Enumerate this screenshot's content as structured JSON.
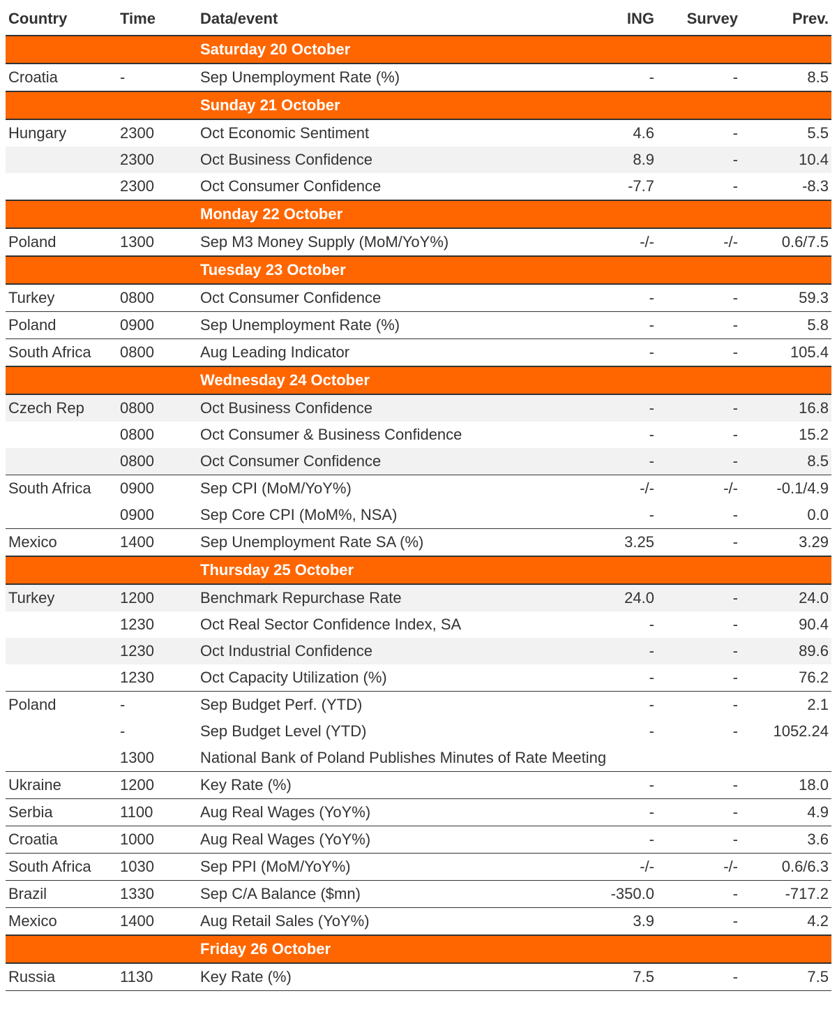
{
  "colors": {
    "accent": "#ff6600",
    "text": "#333333",
    "shaded_row": "#f2f2f2",
    "background": "#ffffff",
    "rule": "#333333"
  },
  "typography": {
    "base_fontsize_pt": 17,
    "header_weight": 700,
    "body_weight": 400
  },
  "columns": {
    "country": "Country",
    "time": "Time",
    "event": "Data/event",
    "ing": "ING",
    "survey": "Survey",
    "prev": "Prev."
  },
  "sections": [
    {
      "title": "Saturday 20 October",
      "rows": [
        {
          "country": "Croatia",
          "time": "-",
          "event": "Sep Unemployment Rate (%)",
          "ing": "-",
          "survey": "-",
          "prev": "8.5",
          "shaded": false
        }
      ]
    },
    {
      "title": "Sunday 21 October",
      "rows": [
        {
          "country": "Hungary",
          "time": "2300",
          "event": "Oct Economic Sentiment",
          "ing": "4.6",
          "survey": "-",
          "prev": "5.5",
          "shaded": false,
          "noborder": true
        },
        {
          "country": "",
          "time": "2300",
          "event": "Oct Business Confidence",
          "ing": "8.9",
          "survey": "-",
          "prev": "10.4",
          "shaded": true,
          "noborder": true
        },
        {
          "country": "",
          "time": "2300",
          "event": "Oct Consumer Confidence",
          "ing": "-7.7",
          "survey": "-",
          "prev": "-8.3",
          "shaded": false
        }
      ]
    },
    {
      "title": "Monday 22 October",
      "rows": [
        {
          "country": "Poland",
          "time": "1300",
          "event": "Sep M3 Money Supply (MoM/YoY%)",
          "ing": "-/-",
          "survey": "-/-",
          "prev": "0.6/7.5",
          "shaded": false
        }
      ]
    },
    {
      "title": "Tuesday 23 October",
      "rows": [
        {
          "country": "Turkey",
          "time": "0800",
          "event": "Oct Consumer Confidence",
          "ing": "-",
          "survey": "-",
          "prev": "59.3",
          "shaded": false
        },
        {
          "country": "Poland",
          "time": "0900",
          "event": "Sep Unemployment Rate (%)",
          "ing": "-",
          "survey": "-",
          "prev": "5.8",
          "shaded": false
        },
        {
          "country": "South Africa",
          "time": "0800",
          "event": "Aug Leading Indicator",
          "ing": "-",
          "survey": "-",
          "prev": "105.4",
          "shaded": false
        }
      ]
    },
    {
      "title": "Wednesday 24 October",
      "rows": [
        {
          "country": "Czech Rep",
          "time": "0800",
          "event": "Oct Business Confidence",
          "ing": "-",
          "survey": "-",
          "prev": "16.8",
          "shaded": true,
          "noborder": true
        },
        {
          "country": "",
          "time": "0800",
          "event": "Oct Consumer & Business Confidence",
          "ing": "-",
          "survey": "-",
          "prev": "15.2",
          "shaded": false,
          "noborder": true
        },
        {
          "country": "",
          "time": "0800",
          "event": "Oct Consumer Confidence",
          "ing": "-",
          "survey": "-",
          "prev": "8.5",
          "shaded": true
        },
        {
          "country": "South Africa",
          "time": "0900",
          "event": "Sep CPI (MoM/YoY%)",
          "ing": "-/-",
          "survey": "-/-",
          "prev": "-0.1/4.9",
          "shaded": false,
          "noborder": true
        },
        {
          "country": "",
          "time": "0900",
          "event": "Sep Core CPI (MoM%, NSA)",
          "ing": "-",
          "survey": "-",
          "prev": "0.0",
          "shaded": false
        },
        {
          "country": "Mexico",
          "time": "1400",
          "event": "Sep Unemployment Rate SA (%)",
          "ing": "3.25",
          "survey": "-",
          "prev": "3.29",
          "shaded": false
        }
      ]
    },
    {
      "title": "Thursday 25 October",
      "rows": [
        {
          "country": "Turkey",
          "time": "1200",
          "event": "Benchmark Repurchase Rate",
          "ing": "24.0",
          "survey": "-",
          "prev": "24.0",
          "shaded": true,
          "noborder": true
        },
        {
          "country": "",
          "time": "1230",
          "event": "Oct Real Sector Confidence Index, SA",
          "ing": "-",
          "survey": "-",
          "prev": "90.4",
          "shaded": false,
          "noborder": true
        },
        {
          "country": "",
          "time": "1230",
          "event": "Oct Industrial Confidence",
          "ing": "-",
          "survey": "-",
          "prev": "89.6",
          "shaded": true,
          "noborder": true
        },
        {
          "country": "",
          "time": "1230",
          "event": "Oct Capacity Utilization (%)",
          "ing": "-",
          "survey": "-",
          "prev": "76.2",
          "shaded": false
        },
        {
          "country": "Poland",
          "time": "-",
          "event": "Sep Budget Perf. (YTD)",
          "ing": "-",
          "survey": "-",
          "prev": "2.1",
          "shaded": false,
          "noborder": true
        },
        {
          "country": "",
          "time": "-",
          "event": "Sep Budget Level (YTD)",
          "ing": "-",
          "survey": "-",
          "prev": "1052.24",
          "shaded": false,
          "noborder": true
        },
        {
          "country": "",
          "time": "1300",
          "event": "National Bank of Poland Publishes Minutes of Rate Meeting",
          "ing": "",
          "survey": "",
          "prev": "",
          "shaded": false
        },
        {
          "country": "Ukraine",
          "time": "1200",
          "event": "Key Rate (%)",
          "ing": "-",
          "survey": "-",
          "prev": "18.0",
          "shaded": false
        },
        {
          "country": "Serbia",
          "time": "1100",
          "event": "Aug Real Wages (YoY%)",
          "ing": "-",
          "survey": "-",
          "prev": "4.9",
          "shaded": false
        },
        {
          "country": "Croatia",
          "time": "1000",
          "event": "Aug Real Wages (YoY%)",
          "ing": "-",
          "survey": "-",
          "prev": "3.6",
          "shaded": false
        },
        {
          "country": "South Africa",
          "time": "1030",
          "event": "Sep PPI (MoM/YoY%)",
          "ing": "-/-",
          "survey": "-/-",
          "prev": "0.6/6.3",
          "shaded": false
        },
        {
          "country": "Brazil",
          "time": "1330",
          "event": "Sep C/A Balance ($mn)",
          "ing": "-350.0",
          "survey": "-",
          "prev": "-717.2",
          "shaded": false
        },
        {
          "country": "Mexico",
          "time": "1400",
          "event": "Aug Retail Sales (YoY%)",
          "ing": "3.9",
          "survey": "-",
          "prev": "4.2",
          "shaded": false
        }
      ]
    },
    {
      "title": "Friday 26 October",
      "rows": [
        {
          "country": "Russia",
          "time": "1130",
          "event": "Key Rate (%)",
          "ing": "7.5",
          "survey": "-",
          "prev": "7.5",
          "shaded": false
        }
      ]
    }
  ]
}
